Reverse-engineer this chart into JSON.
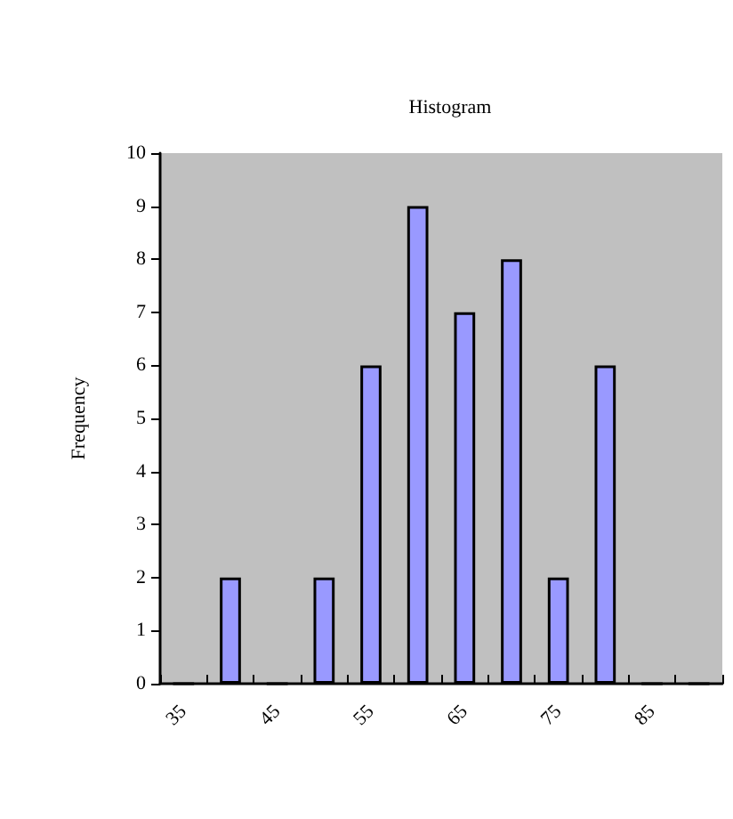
{
  "chart_data": {
    "type": "bar",
    "title": "Histogram",
    "ylabel": "Frequency",
    "categories": [
      "35",
      null,
      "45",
      null,
      "55",
      null,
      "65",
      null,
      "75",
      null,
      "85",
      null
    ],
    "values": [
      0,
      2,
      0,
      2,
      6,
      9,
      7,
      8,
      2,
      6,
      0,
      0
    ],
    "color": "#9999ff",
    "ylim": [
      0,
      10
    ],
    "yticks": [
      0,
      1,
      2,
      3,
      4,
      5,
      6,
      7,
      8,
      9,
      10
    ],
    "grid": false
  }
}
